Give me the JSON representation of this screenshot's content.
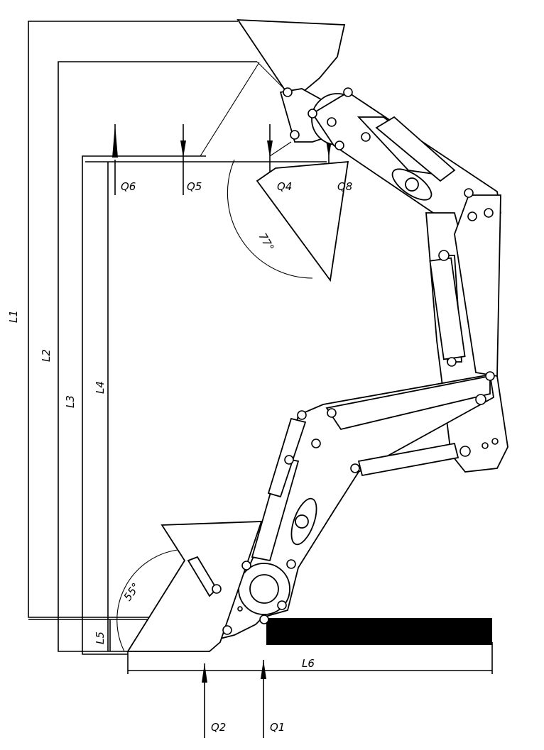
{
  "labels": {
    "L1": "L1",
    "L2": "L2",
    "L3": "L3",
    "L4": "L4",
    "L5": "L5",
    "L6": "L6",
    "Q1": "Q1",
    "Q2": "Q2",
    "Q4": "Q4",
    "Q5": "Q5",
    "Q6": "Q6",
    "Q8": "Q8",
    "angle_raised": "77°",
    "angle_lowered": "55°"
  },
  "colors": {
    "line": "#000000",
    "background": "#ffffff"
  }
}
